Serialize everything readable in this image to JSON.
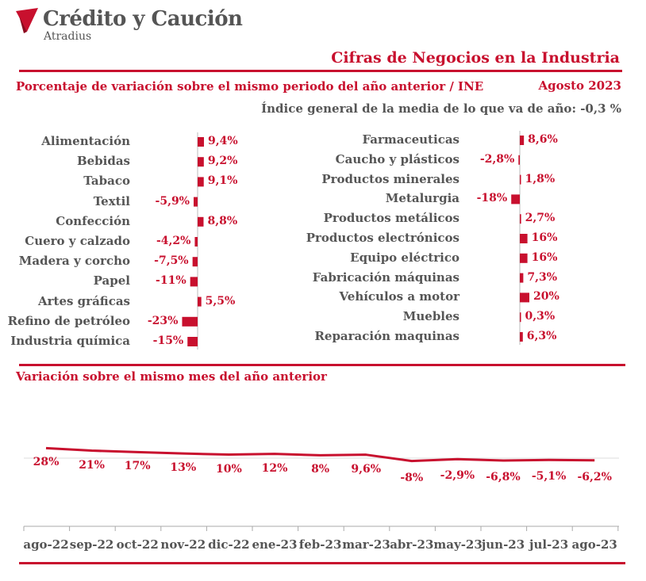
{
  "header": {
    "brand_name": "Crédito y Caución",
    "brand_sub": "Atradius",
    "title": "Cifras de Negocios en la Industria",
    "subtitle": "Porcentaje de variación sobre el mismo periodo del año anterior / INE",
    "date": "Agosto 2023",
    "index_text": "Índice general de la media de lo que va de año:  -0,3 %"
  },
  "colors": {
    "accent": "#c8102e",
    "text": "#555555",
    "grid": "#cccccc"
  },
  "chart_data": [
    {
      "type": "bar",
      "orientation": "horizontal",
      "categories": [
        "Alimentación",
        "Bebidas",
        "Tabaco",
        "Textil",
        "Confección",
        "Cuero y calzado",
        "Madera y corcho",
        "Papel",
        "Artes gráficas",
        "Refino de petróleo",
        "Industria química"
      ],
      "values": [
        9.4,
        9.2,
        9.1,
        -5.9,
        8.8,
        -4.2,
        -7.5,
        -11,
        5.5,
        -23,
        -15
      ],
      "labels": [
        "9,4%",
        "9,2%",
        "9,1%",
        "-5,9%",
        "8,8%",
        "-4,2%",
        "-7,5%",
        "-11%",
        "5,5%",
        "-23%",
        "-15%"
      ]
    },
    {
      "type": "bar",
      "orientation": "horizontal",
      "categories": [
        "Farmaceuticas",
        "Caucho y plásticos",
        "Productos minerales",
        "Metalurgia",
        "Productos metálicos",
        "Productos electrónicos",
        "Equipo eléctrico",
        "Fabricación máquinas",
        "Vehículos a motor",
        "Muebles",
        "Reparación maquinas"
      ],
      "values": [
        8.6,
        -2.8,
        1.8,
        -18,
        2.7,
        16,
        16,
        7.3,
        20,
        0.3,
        6.3
      ],
      "labels": [
        "8,6%",
        "-2,8%",
        "1,8%",
        "-18%",
        "2,7%",
        "16%",
        "16%",
        "7,3%",
        "20%",
        "0,3%",
        "6,3%"
      ]
    },
    {
      "type": "line",
      "title": "Variación sobre el mismo mes del año anterior",
      "categories": [
        "ago-22",
        "sep-22",
        "oct-22",
        "nov-22",
        "dic-22",
        "ene-23",
        "feb-23",
        "mar-23",
        "abr-23",
        "may-23",
        "jun-23",
        "jul-23",
        "ago-23"
      ],
      "values": [
        28,
        21,
        17,
        13,
        10,
        12,
        8,
        9.6,
        -8,
        -2.9,
        -6.8,
        -5.1,
        -6.2
      ],
      "labels": [
        "28%",
        "21%",
        "17%",
        "13%",
        "10%",
        "12%",
        "8%",
        "9,6%",
        "-8%",
        "-2,9%",
        "-6,8%",
        "-5,1%",
        "-6,2%"
      ]
    }
  ]
}
